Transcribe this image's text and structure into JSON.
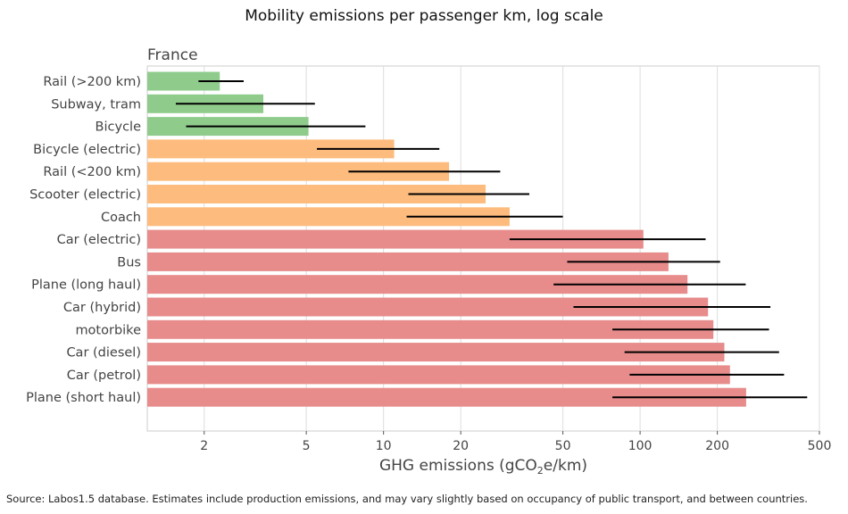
{
  "chart_data": {
    "type": "bar",
    "orientation": "horizontal",
    "title": "Mobility emissions per passenger km, log scale",
    "subtitle": "France",
    "xlabel": "GHG emissions (gCO2e/km)",
    "xlabel_parts": [
      "GHG emissions (gCO",
      "2",
      "e/km)"
    ],
    "xscale": "log",
    "xlim": [
      1.2,
      500
    ],
    "xticks": [
      2,
      5,
      10,
      20,
      50,
      100,
      200,
      500
    ],
    "grid": "vertical",
    "categories": [
      "Rail (>200 km)",
      "Subway, tram",
      "Bicycle",
      "Bicycle (electric)",
      "Rail (<200 km)",
      "Scooter (electric)",
      "Coach",
      "Car (electric)",
      "Bus",
      "Plane (long haul)",
      "Car (hybrid)",
      "motorbike",
      "Car (diesel)",
      "Car (petrol)",
      "Plane (short haul)"
    ],
    "values": [
      2.3,
      3.4,
      5.1,
      11,
      18,
      25,
      31,
      103,
      129,
      153,
      184,
      193,
      213,
      224,
      259
    ],
    "error_low": [
      1.9,
      1.55,
      1.7,
      5.5,
      7.3,
      12.5,
      12.3,
      31,
      52,
      46,
      55,
      78,
      87,
      91,
      78
    ],
    "error_high": [
      2.85,
      5.4,
      8.5,
      16.5,
      28.5,
      37,
      50,
      180,
      205,
      258,
      322,
      318,
      348,
      364,
      448
    ],
    "groups": [
      "low",
      "low",
      "low",
      "mid",
      "mid",
      "mid",
      "mid",
      "high",
      "high",
      "high",
      "high",
      "high",
      "high",
      "high",
      "high"
    ],
    "colors": {
      "low": "#8fcc8c",
      "mid": "#fdbb7d",
      "high": "#e78b8b",
      "error": "#000000",
      "grid": "#dddddd",
      "frame": "#cccccc"
    }
  },
  "source": "Source: Labos1.5 database. Estimates include production emissions, and may vary slightly based on occupancy of public transport, and between countries."
}
